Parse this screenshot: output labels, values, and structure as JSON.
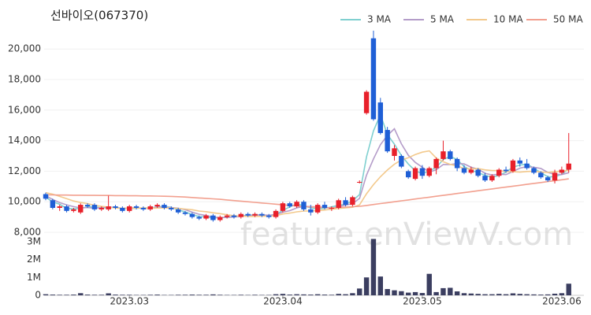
{
  "chart_data": [
    {
      "type": "candlestick",
      "title": "선바이오(067370)",
      "watermark": "feature.enViewV.com",
      "up_color": "#e8202a",
      "down_color": "#1f5fd6",
      "grid": true,
      "legend": "top-right",
      "ylim": [
        8000,
        21300
      ],
      "yticks": [
        {
          "value": 8000,
          "label": "8,000"
        },
        {
          "value": 10000,
          "label": "10,000"
        },
        {
          "value": 12000,
          "label": "12,000"
        },
        {
          "value": 14000,
          "label": "14,000"
        },
        {
          "value": 16000,
          "label": "16,000"
        },
        {
          "value": 18000,
          "label": "18,000"
        },
        {
          "value": 20000,
          "label": "20,000"
        }
      ],
      "open": [
        10500,
        10100,
        9600,
        9700,
        9400,
        9300,
        9800,
        9800,
        9500,
        9500,
        9700,
        9600,
        9400,
        9700,
        9600,
        9500,
        9700,
        9800,
        9600,
        9500,
        9300,
        9200,
        9000,
        8900,
        9100,
        8800,
        9000,
        9100,
        9000,
        9200,
        9100,
        9200,
        9100,
        9000,
        9400,
        9900,
        9700,
        10000,
        9500,
        9300,
        9800,
        9600,
        9600,
        10100,
        9800,
        11300,
        15800,
        20700,
        16500,
        14700,
        13000,
        13000,
        12000,
        11500,
        12200,
        11700,
        12200,
        12800,
        13300,
        12800,
        12200,
        11900,
        12100,
        11700,
        11400,
        11700,
        12100,
        12000,
        12700,
        12500,
        12200,
        11900,
        11600,
        11400,
        11900,
        12100
      ],
      "high": [
        10600,
        10200,
        9800,
        9800,
        9600,
        9900,
        9900,
        9900,
        9700,
        10400,
        9800,
        9700,
        9800,
        9800,
        9700,
        9800,
        9900,
        9900,
        9700,
        9600,
        9400,
        9300,
        9100,
        9200,
        9200,
        9100,
        9200,
        9200,
        9300,
        9300,
        9300,
        9300,
        9200,
        9500,
        10000,
        10000,
        10100,
        10100,
        9800,
        9900,
        10000,
        9700,
        10200,
        10300,
        10400,
        11400,
        17300,
        21200,
        16800,
        14900,
        13700,
        13100,
        12100,
        12300,
        12400,
        12300,
        12900,
        14000,
        13400,
        12900,
        12400,
        12300,
        12200,
        11900,
        11800,
        12200,
        12300,
        12800,
        12900,
        12800,
        12300,
        12000,
        11700,
        12100,
        12300,
        14500
      ],
      "low": [
        10100,
        9500,
        9400,
        9300,
        9300,
        9200,
        9600,
        9400,
        9400,
        9400,
        9500,
        9300,
        9300,
        9500,
        9400,
        9400,
        9600,
        9500,
        9400,
        9200,
        9100,
        8900,
        8800,
        8800,
        8700,
        8700,
        8900,
        8900,
        8900,
        9000,
        9000,
        9000,
        8900,
        8900,
        9300,
        9600,
        9600,
        9400,
        9100,
        9200,
        9500,
        9400,
        9500,
        9700,
        9700,
        11200,
        15700,
        15300,
        14400,
        13200,
        12700,
        12200,
        11500,
        11400,
        11500,
        11600,
        11800,
        12700,
        12700,
        12000,
        11800,
        11800,
        11600,
        11300,
        11300,
        11600,
        11900,
        11900,
        12300,
        12100,
        11800,
        11500,
        11300,
        11200,
        11800,
        11900
      ],
      "close": [
        10200,
        9600,
        9700,
        9400,
        9500,
        9800,
        9700,
        9500,
        9600,
        9700,
        9600,
        9400,
        9700,
        9600,
        9500,
        9700,
        9800,
        9600,
        9500,
        9300,
        9200,
        9000,
        8900,
        9100,
        8800,
        9000,
        9100,
        9000,
        9200,
        9100,
        9200,
        9100,
        9000,
        9400,
        9900,
        9700,
        10000,
        9500,
        9300,
        9800,
        9600,
        9600,
        10100,
        9800,
        10300,
        11300,
        17200,
        15400,
        14500,
        13300,
        13500,
        12300,
        11600,
        12200,
        11700,
        12200,
        12800,
        13300,
        12800,
        12200,
        11900,
        12100,
        11700,
        11400,
        11700,
        12100,
        12000,
        12700,
        12500,
        12200,
        11900,
        11600,
        11400,
        11900,
        12100,
        12500
      ],
      "series": [
        {
          "name": "3 MA",
          "color": "#7fd0d0",
          "values": [
            10300,
            10000,
            9833,
            9567,
            9533,
            9567,
            9667,
            9667,
            9600,
            9600,
            9633,
            9567,
            9567,
            9567,
            9600,
            9600,
            9667,
            9700,
            9633,
            9467,
            9333,
            9167,
            9033,
            9000,
            8933,
            8967,
            8967,
            9033,
            9100,
            9100,
            9167,
            9133,
            9100,
            9167,
            9433,
            9667,
            9867,
            9733,
            9600,
            9533,
            9567,
            9667,
            9767,
            9833,
            10067,
            10467,
            12933,
            14633,
            15700,
            14400,
            13767,
            13033,
            12467,
            12033,
            11833,
            12033,
            12233,
            12767,
            12967,
            12767,
            12300,
            12067,
            11900,
            11733,
            11600,
            11733,
            11933,
            12267,
            12400,
            12467,
            12200,
            11900,
            11633,
            11633,
            11800,
            12167
          ]
        },
        {
          "name": "5 MA",
          "color": "#b49cc9",
          "values": [
            10400,
            10150,
            9950,
            9800,
            9680,
            9600,
            9620,
            9580,
            9620,
            9660,
            9620,
            9560,
            9600,
            9600,
            9560,
            9580,
            9660,
            9640,
            9620,
            9580,
            9480,
            9320,
            9180,
            9100,
            9000,
            8960,
            8980,
            9000,
            9060,
            9080,
            9120,
            9140,
            9120,
            9160,
            9320,
            9420,
            9600,
            9700,
            9680,
            9660,
            9640,
            9560,
            9680,
            9780,
            9880,
            10220,
            11740,
            12800,
            13740,
            14340,
            14780,
            13800,
            13040,
            12580,
            12260,
            11940,
            12100,
            12440,
            12440,
            12500,
            12480,
            12260,
            12140,
            11860,
            11760,
            11800,
            11780,
            11980,
            12200,
            12300,
            12260,
            12180,
            11920,
            11800,
            11780,
            11900
          ]
        },
        {
          "name": "10 MA",
          "color": "#f3c98c",
          "values": [
            10600,
            10500,
            10350,
            10200,
            10050,
            9950,
            9880,
            9770,
            9700,
            9650,
            9590,
            9570,
            9570,
            9590,
            9590,
            9580,
            9590,
            9600,
            9590,
            9560,
            9520,
            9480,
            9390,
            9350,
            9280,
            9220,
            9150,
            9090,
            9060,
            9040,
            9040,
            9050,
            9060,
            9090,
            9200,
            9260,
            9340,
            9390,
            9400,
            9420,
            9460,
            9510,
            9560,
            9600,
            9640,
            9800,
            10520,
            11120,
            11640,
            12080,
            12460,
            12730,
            12880,
            13090,
            13250,
            13330,
            12860,
            12620,
            12450,
            12340,
            12180,
            12160,
            12170,
            12090,
            12040,
            12040,
            11980,
            11970,
            11940,
            11980,
            12000,
            11950,
            11920,
            11970,
            12010,
            12050
          ]
        },
        {
          "name": "50 MA",
          "color": "#f2a08f",
          "values": [
            10450,
            10450,
            10440,
            10440,
            10430,
            10430,
            10420,
            10420,
            10410,
            10410,
            10400,
            10400,
            10390,
            10390,
            10380,
            10380,
            10370,
            10360,
            10350,
            10330,
            10310,
            10280,
            10250,
            10220,
            10190,
            10160,
            10120,
            10080,
            10040,
            10000,
            9960,
            9920,
            9880,
            9840,
            9800,
            9760,
            9720,
            9690,
            9660,
            9640,
            9620,
            9600,
            9620,
            9650,
            9680,
            9700,
            9760,
            9820,
            9880,
            9940,
            10000,
            10060,
            10120,
            10180,
            10240,
            10300,
            10360,
            10420,
            10480,
            10540,
            10600,
            10660,
            10720,
            10780,
            10840,
            10900,
            10960,
            11020,
            11080,
            11140,
            11200,
            11260,
            11320,
            11380,
            11440,
            11500
          ]
        }
      ]
    },
    {
      "type": "bar",
      "color": "#3b3e60",
      "ylim": [
        0,
        3300000
      ],
      "yticks": [
        0,
        {
          "value": 1000000,
          "label": "1M"
        },
        {
          "value": 2000000,
          "label": "2M"
        },
        {
          "value": 3000000,
          "label": "3M"
        }
      ],
      "categories": [
        null,
        null,
        null,
        null,
        null,
        null,
        null,
        null,
        null,
        null,
        null,
        null,
        "2023.03",
        null,
        null,
        null,
        null,
        null,
        null,
        null,
        null,
        null,
        null,
        null,
        null,
        null,
        null,
        null,
        null,
        null,
        null,
        null,
        null,
        null,
        "2023.04",
        null,
        null,
        null,
        null,
        null,
        null,
        null,
        null,
        null,
        null,
        null,
        null,
        null,
        null,
        null,
        null,
        null,
        null,
        null,
        "2023.05",
        null,
        null,
        null,
        null,
        null,
        null,
        null,
        null,
        null,
        null,
        null,
        null,
        null,
        null,
        null,
        null,
        null,
        null,
        null,
        "2023.06",
        null
      ],
      "values": [
        60000,
        40000,
        30000,
        30000,
        40000,
        120000,
        40000,
        30000,
        30000,
        110000,
        40000,
        30000,
        30000,
        20000,
        20000,
        30000,
        40000,
        20000,
        20000,
        30000,
        30000,
        40000,
        30000,
        30000,
        50000,
        30000,
        20000,
        20000,
        30000,
        20000,
        30000,
        20000,
        20000,
        60000,
        80000,
        40000,
        60000,
        50000,
        40000,
        60000,
        40000,
        30000,
        80000,
        60000,
        120000,
        380000,
        1000000,
        3150000,
        1050000,
        350000,
        280000,
        230000,
        150000,
        180000,
        130000,
        1200000,
        180000,
        400000,
        420000,
        220000,
        120000,
        100000,
        80000,
        60000,
        60000,
        80000,
        60000,
        110000,
        80000,
        60000,
        50000,
        40000,
        50000,
        90000,
        120000,
        650000
      ]
    }
  ]
}
